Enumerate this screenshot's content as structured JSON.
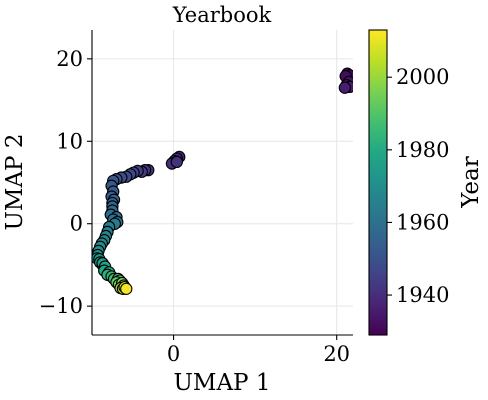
{
  "chart_data": {
    "type": "scatter",
    "title": "Yearbook",
    "xlabel": "UMAP 1",
    "ylabel": "UMAP 2",
    "xlim": [
      -10,
      22
    ],
    "ylim": [
      -13.5,
      23.5
    ],
    "xticks": [
      0,
      20
    ],
    "yticks": [
      -10,
      0,
      10,
      20
    ],
    "xtick_labels": [
      "0",
      "20"
    ],
    "ytick_labels": [
      "−10",
      "0",
      "10",
      "20"
    ],
    "grid": true,
    "colorbar": {
      "label": "Year",
      "colormap": "viridis",
      "range": [
        1929,
        2013
      ],
      "ticks": [
        1940,
        1960,
        1980,
        2000
      ],
      "tick_labels": [
        "1940",
        "1960",
        "1980",
        "2000"
      ]
    },
    "points": [
      {
        "x": 21.3,
        "y": 18.2,
        "year": 1930
      },
      {
        "x": 21.6,
        "y": 18.0,
        "year": 1931
      },
      {
        "x": 21.1,
        "y": 17.9,
        "year": 1932
      },
      {
        "x": 21.5,
        "y": 17.2,
        "year": 1933
      },
      {
        "x": 21.2,
        "y": 16.8,
        "year": 1934
      },
      {
        "x": 21.6,
        "y": 16.6,
        "year": 1935
      },
      {
        "x": 21.0,
        "y": 16.5,
        "year": 1936
      },
      {
        "x": 0.7,
        "y": 8.1,
        "year": 1937
      },
      {
        "x": 0.4,
        "y": 7.9,
        "year": 1938
      },
      {
        "x": 0.1,
        "y": 7.6,
        "year": 1939
      },
      {
        "x": -0.2,
        "y": 7.3,
        "year": 1940
      },
      {
        "x": 0.4,
        "y": 7.5,
        "year": 1941
      },
      {
        "x": -3.1,
        "y": 6.5,
        "year": 1942
      },
      {
        "x": -3.5,
        "y": 6.5,
        "year": 1943
      },
      {
        "x": -3.9,
        "y": 6.3,
        "year": 1944
      },
      {
        "x": -4.4,
        "y": 6.4,
        "year": 1945
      },
      {
        "x": -4.9,
        "y": 6.2,
        "year": 1946
      },
      {
        "x": -5.3,
        "y": 6.0,
        "year": 1947
      },
      {
        "x": -5.8,
        "y": 5.7,
        "year": 1948
      },
      {
        "x": -6.4,
        "y": 5.6,
        "year": 1949
      },
      {
        "x": -7.0,
        "y": 5.4,
        "year": 1950
      },
      {
        "x": -7.4,
        "y": 5.2,
        "year": 1951
      },
      {
        "x": -7.6,
        "y": 4.6,
        "year": 1952
      },
      {
        "x": -7.4,
        "y": 3.9,
        "year": 1953
      },
      {
        "x": -7.6,
        "y": 3.3,
        "year": 1954
      },
      {
        "x": -7.3,
        "y": 2.9,
        "year": 1955
      },
      {
        "x": -7.5,
        "y": 2.5,
        "year": 1956
      },
      {
        "x": -7.5,
        "y": 2.1,
        "year": 1957
      },
      {
        "x": -7.5,
        "y": 1.6,
        "year": 1958
      },
      {
        "x": -7.7,
        "y": 1.1,
        "year": 1959
      },
      {
        "x": -7.0,
        "y": 0.8,
        "year": 1960
      },
      {
        "x": -7.4,
        "y": 0.5,
        "year": 1961
      },
      {
        "x": -6.9,
        "y": 0.2,
        "year": 1962
      },
      {
        "x": -7.2,
        "y": 0.0,
        "year": 1963
      },
      {
        "x": -7.9,
        "y": -0.4,
        "year": 1964
      },
      {
        "x": -8.1,
        "y": -1.0,
        "year": 1965
      },
      {
        "x": -8.3,
        "y": -1.5,
        "year": 1966
      },
      {
        "x": -8.5,
        "y": -2.0,
        "year": 1967
      },
      {
        "x": -8.8,
        "y": -2.4,
        "year": 1968
      },
      {
        "x": -9.0,
        "y": -2.8,
        "year": 1969
      },
      {
        "x": -9.2,
        "y": -3.3,
        "year": 1970
      },
      {
        "x": -9.3,
        "y": -3.8,
        "year": 1971
      },
      {
        "x": -9.4,
        "y": -4.2,
        "year": 1972
      },
      {
        "x": -9.1,
        "y": -4.3,
        "year": 1973
      },
      {
        "x": -9.0,
        "y": -4.7,
        "year": 1974
      },
      {
        "x": -8.7,
        "y": -5.0,
        "year": 1975
      },
      {
        "x": -8.7,
        "y": -4.8,
        "year": 1976
      },
      {
        "x": -8.4,
        "y": -5.2,
        "year": 1977
      },
      {
        "x": -8.5,
        "y": -5.7,
        "year": 1978
      },
      {
        "x": -7.9,
        "y": -5.9,
        "year": 1980
      },
      {
        "x": -8.1,
        "y": -6.2,
        "year": 1982
      },
      {
        "x": -7.6,
        "y": -6.4,
        "year": 1984
      },
      {
        "x": -7.3,
        "y": -6.7,
        "year": 1986
      },
      {
        "x": -6.8,
        "y": -6.7,
        "year": 1988
      },
      {
        "x": -6.6,
        "y": -6.9,
        "year": 1990
      },
      {
        "x": -7.0,
        "y": -7.1,
        "year": 1992
      },
      {
        "x": -6.7,
        "y": -7.4,
        "year": 1994
      },
      {
        "x": -6.3,
        "y": -7.2,
        "year": 1996
      },
      {
        "x": -6.1,
        "y": -7.5,
        "year": 1998
      },
      {
        "x": -6.5,
        "y": -7.8,
        "year": 2000
      },
      {
        "x": -6.2,
        "y": -7.9,
        "year": 2004
      },
      {
        "x": -6.0,
        "y": -7.7,
        "year": 2008
      },
      {
        "x": -5.8,
        "y": -7.9,
        "year": 2012
      }
    ]
  }
}
